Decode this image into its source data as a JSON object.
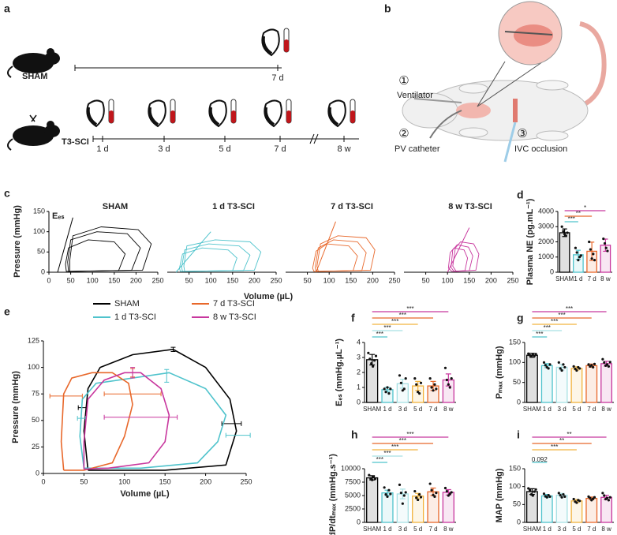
{
  "timeline": {
    "panel": "a",
    "rows": [
      {
        "label": "SHAM",
        "timepoints": [
          "7 d"
        ]
      },
      {
        "label": "T3-SCI",
        "timepoints": [
          "1 d",
          "3 d",
          "5 d",
          "7 d",
          "8 w"
        ]
      }
    ]
  },
  "diagram": {
    "panel": "b",
    "labels": [
      {
        "number": "①",
        "text": "Ventilator"
      },
      {
        "number": "②",
        "text": "PV catheter"
      },
      {
        "number": "③",
        "text": "IVC occlusion"
      }
    ]
  },
  "chart_data": [
    {
      "panel": "c",
      "type": "pv_loops",
      "ylabel": "Pressure (mmHg)",
      "xlabel": "Volume (µL)",
      "annotation": "Eₑₛ",
      "xlim": [
        0,
        250
      ],
      "ylim": [
        0,
        150
      ],
      "xticks": [
        0,
        50,
        100,
        150,
        200,
        250
      ],
      "yticks": [
        0,
        50,
        100,
        150
      ],
      "subplots": [
        {
          "title": "SHAM",
          "color": "#000000",
          "ees": {
            "x": [
              20,
              55
            ],
            "y": [
              0,
              135
            ]
          },
          "loops": [
            {
              "x": [
                48,
                215,
                235,
                205,
                120,
                55,
                48
              ],
              "y": [
                2,
                5,
                70,
                105,
                112,
                90,
                30
              ]
            },
            {
              "x": [
                45,
                190,
                210,
                180,
                110,
                50,
                43
              ],
              "y": [
                2,
                5,
                60,
                95,
                100,
                80,
                25
              ]
            },
            {
              "x": [
                40,
                160,
                175,
                150,
                90,
                45,
                38
              ],
              "y": [
                2,
                4,
                45,
                75,
                80,
                60,
                20
              ]
            }
          ]
        },
        {
          "title": "1 d T3-SCI",
          "color": "#4fc3cc",
          "ees": {
            "x": [
              20,
              100
            ],
            "y": [
              0,
              100
            ]
          },
          "loops": [
            {
              "x": [
                40,
                200,
                215,
                190,
                110,
                45,
                38
              ],
              "y": [
                2,
                5,
                50,
                75,
                80,
                65,
                15
              ]
            },
            {
              "x": [
                35,
                175,
                190,
                165,
                95,
                40,
                33
              ],
              "y": [
                2,
                4,
                42,
                65,
                70,
                55,
                12
              ]
            },
            {
              "x": [
                30,
                150,
                160,
                140,
                80,
                35,
                28
              ],
              "y": [
                2,
                4,
                35,
                55,
                60,
                45,
                10
              ]
            }
          ]
        },
        {
          "title": "7 d T3-SCI",
          "color": "#e8682b",
          "ees": {
            "x": [
              70,
              115
            ],
            "y": [
              0,
              125
            ]
          },
          "loops": [
            {
              "x": [
                75,
                195,
                205,
                185,
                120,
                80,
                72
              ],
              "y": [
                2,
                5,
                55,
                85,
                90,
                70,
                15
              ]
            },
            {
              "x": [
                70,
                175,
                185,
                165,
                110,
                75,
                68
              ],
              "y": [
                2,
                4,
                48,
                75,
                80,
                60,
                12
              ]
            },
            {
              "x": [
                65,
                155,
                165,
                145,
                95,
                70,
                62
              ],
              "y": [
                2,
                4,
                40,
                65,
                70,
                52,
                10
              ]
            }
          ]
        },
        {
          "title": "8 w T3-SCI",
          "color": "#c8379e",
          "ees": {
            "x": [
              100,
              150
            ],
            "y": [
              0,
              110
            ]
          },
          "loops": [
            {
              "x": [
                120,
                165,
                172,
                160,
                130,
                118,
                112
              ],
              "y": [
                2,
                5,
                45,
                70,
                75,
                60,
                15
              ]
            },
            {
              "x": [
                115,
                150,
                158,
                148,
                122,
                112,
                108
              ],
              "y": [
                2,
                4,
                40,
                62,
                68,
                55,
                12
              ]
            },
            {
              "x": [
                110,
                140,
                146,
                138,
                115,
                106,
                102
              ],
              "y": [
                2,
                4,
                35,
                55,
                60,
                48,
                10
              ]
            }
          ]
        }
      ]
    },
    {
      "panel": "d",
      "type": "bar",
      "ylabel": "Plasma NE (pg.mL⁻¹)",
      "categories": [
        "SHAM",
        "1 d",
        "7 d",
        "8 w"
      ],
      "colors": [
        "#000000",
        "#4fc3cc",
        "#e8682b",
        "#c8379e"
      ],
      "values": [
        2600,
        1150,
        1380,
        1780
      ],
      "errors": [
        250,
        300,
        600,
        400
      ],
      "points": [
        [
          3000,
          2700,
          2500,
          2400,
          2600
        ],
        [
          1600,
          1300,
          800,
          1000,
          1100
        ],
        [
          2000,
          1500,
          900,
          1200,
          800
        ],
        [
          2200,
          1900,
          1600,
          1400
        ]
      ],
      "ylim": [
        0,
        4000
      ],
      "yticks": [
        0,
        1000,
        2000,
        3000,
        4000
      ],
      "significance": [
        "***",
        "**",
        "*"
      ]
    },
    {
      "panel": "e",
      "type": "pv_mean",
      "xlabel": "Volume (µL)",
      "ylabel": "Pressure (mmHg)",
      "xlim": [
        0,
        250
      ],
      "ylim": [
        0,
        125
      ],
      "xticks": [
        0,
        50,
        100,
        150,
        200,
        250
      ],
      "yticks": [
        0,
        25,
        50,
        75,
        100,
        125
      ],
      "series": [
        {
          "name": "SHAM",
          "color": "#000000",
          "x": [
            55,
            150,
            225,
            238,
            230,
            200,
            160,
            110,
            70,
            55,
            50,
            55
          ],
          "y": [
            3,
            3,
            8,
            40,
            70,
            100,
            117,
            112,
            100,
            80,
            40,
            3
          ],
          "error_bars": {
            "x": [
              232,
              160,
              48
            ],
            "y": [
              47,
              117,
              62
            ],
            "xerr": [
              12,
              null,
              5
            ],
            "yerr": [
              null,
              2,
              null
            ]
          }
        },
        {
          "name": "1 d T3-SCI",
          "color": "#4fc3cc",
          "x": [
            50,
            120,
            190,
            215,
            225,
            200,
            155,
            110,
            65,
            48,
            45,
            50
          ],
          "y": [
            5,
            5,
            10,
            30,
            55,
            80,
            95,
            90,
            85,
            70,
            35,
            5
          ],
          "error_bars": {
            "x": [
              240,
              152,
              47
            ],
            "y": [
              36,
              92,
              52
            ],
            "xerr": [
              15,
              null,
              5
            ],
            "yerr": [
              null,
              6,
              null
            ]
          }
        },
        {
          "name": "7 d T3-SCI",
          "color": "#e8682b",
          "x": [
            25,
            50,
            85,
            100,
            110,
            105,
            85,
            60,
            35,
            25,
            22,
            25
          ],
          "y": [
            3,
            3,
            10,
            35,
            65,
            85,
            95,
            95,
            90,
            75,
            30,
            3
          ],
          "error_bars": {
            "x": [
              110,
              110,
              28
            ],
            "y": [
              75,
              95,
              73
            ],
            "xerr": [
              35,
              null,
              20
            ],
            "yerr": [
              null,
              4,
              null
            ]
          }
        },
        {
          "name": "8 w T3-SCI",
          "color": "#c8379e",
          "x": [
            50,
            80,
            130,
            150,
            155,
            145,
            120,
            100,
            75,
            55,
            50,
            50
          ],
          "y": [
            4,
            5,
            10,
            30,
            55,
            80,
            95,
            95,
            88,
            70,
            30,
            4
          ],
          "error_bars": {
            "x": [
              120,
              110
            ],
            "y": [
              53,
              95
            ],
            "xerr": [
              45,
              null
            ],
            "yerr": [
              null,
              5
            ]
          }
        }
      ]
    },
    {
      "panel": "f",
      "type": "bar",
      "ylabel": "Eₑₛ (mmHg.µL⁻¹)",
      "categories": [
        "SHAM",
        "1 d",
        "3 d",
        "5 d",
        "7 d",
        "8 w"
      ],
      "colors": [
        "#000000",
        "#4fc3cc",
        "#a8e0e3",
        "#f2b33d",
        "#e8682b",
        "#c8379e"
      ],
      "values": [
        2.85,
        0.85,
        1.25,
        1.1,
        1.1,
        1.5
      ],
      "errors": [
        0.35,
        0.15,
        0.3,
        0.3,
        0.3,
        0.4
      ],
      "points": [
        [
          3.3,
          2.9,
          2.6,
          2.4,
          2.8,
          3.1
        ],
        [
          0.9,
          0.7,
          1.0,
          0.6,
          0.9
        ],
        [
          1.8,
          1.3,
          0.8,
          0.9,
          1.6
        ],
        [
          1.6,
          1.2,
          0.7,
          0.6,
          1.3
        ],
        [
          1.6,
          1.0,
          0.8,
          1.2,
          0.9
        ],
        [
          2.3,
          1.5,
          1.2,
          1.0,
          1.6
        ]
      ],
      "ylim": [
        0,
        4
      ],
      "yticks": [
        0,
        1,
        2,
        3,
        4
      ],
      "significance": [
        "***",
        "***",
        "***",
        "***",
        "***"
      ]
    },
    {
      "panel": "g",
      "type": "bar",
      "ylabel": "Pₘₐₓ (mmHg)",
      "categories": [
        "SHAM",
        "1 d",
        "3 d",
        "5 d",
        "7 d",
        "8 w"
      ],
      "colors": [
        "#000000",
        "#4fc3cc",
        "#a8e0e3",
        "#f2b33d",
        "#e8682b",
        "#c8379e"
      ],
      "values": [
        118,
        92,
        88,
        85,
        92,
        97
      ],
      "errors": [
        5,
        5,
        7,
        4,
        4,
        6
      ],
      "points": [
        [
          122,
          118,
          115,
          120,
          116,
          121
        ],
        [
          100,
          93,
          88,
          85,
          95
        ],
        [
          100,
          85,
          80,
          95,
          88
        ],
        [
          90,
          84,
          80,
          88,
          85
        ],
        [
          95,
          90,
          93,
          88,
          96
        ],
        [
          108,
          100,
          92,
          95,
          90,
          101
        ]
      ],
      "ylim": [
        0,
        150
      ],
      "yticks": [
        0,
        50,
        100,
        150
      ],
      "significance": [
        "***",
        "***",
        "***",
        "***",
        "***"
      ]
    },
    {
      "panel": "h",
      "type": "bar",
      "ylabel": "dP/dtₘₐₓ (mmHg.s⁻¹)",
      "categories": [
        "SHAM",
        "1 d",
        "3 d",
        "5 d",
        "7 d",
        "8 w"
      ],
      "colors": [
        "#000000",
        "#4fc3cc",
        "#a8e0e3",
        "#f2b33d",
        "#e8682b",
        "#c8379e"
      ],
      "values": [
        8300,
        5500,
        5300,
        4900,
        5700,
        5600
      ],
      "errors": [
        400,
        500,
        900,
        500,
        700,
        500
      ],
      "points": [
        [
          8800,
          8200,
          7900,
          8500,
          8100
        ],
        [
          6500,
          5200,
          4800,
          6000,
          5300
        ],
        [
          7000,
          5500,
          3500,
          5000,
          5600
        ],
        [
          5800,
          4600,
          4200,
          5200,
          4700
        ],
        [
          7200,
          6000,
          5100,
          4800,
          5500
        ],
        [
          6400,
          5800,
          5000,
          5300,
          5600
        ]
      ],
      "ylim": [
        0,
        10000
      ],
      "yticks": [
        0,
        2500,
        5000,
        7500,
        10000
      ],
      "significance": [
        "***",
        "***",
        "***",
        "***",
        "***"
      ]
    },
    {
      "panel": "i",
      "type": "bar",
      "ylabel": "MAP (mmHg)",
      "categories": [
        "SHAM",
        "1 d",
        "3 d",
        "5 d",
        "7 d",
        "8 w"
      ],
      "colors": [
        "#000000",
        "#4fc3cc",
        "#a8e0e3",
        "#f2b33d",
        "#e8682b",
        "#c8379e"
      ],
      "values": [
        86,
        74,
        76,
        60,
        67,
        70
      ],
      "errors": [
        8,
        4,
        5,
        4,
        4,
        6
      ],
      "points": [
        [
          95,
          90,
          78,
          75,
          86,
          92
        ],
        [
          80,
          73,
          70,
          76,
          72
        ],
        [
          82,
          76,
          70,
          78,
          72
        ],
        [
          65,
          58,
          55,
          62,
          60
        ],
        [
          72,
          68,
          62,
          66,
          70
        ],
        [
          82,
          75,
          65,
          68,
          62,
          70
        ]
      ],
      "ylim": [
        0,
        150
      ],
      "yticks": [
        0,
        50,
        100,
        150
      ],
      "significance": [
        "0.092",
        null,
        "***",
        "**",
        "**"
      ]
    }
  ]
}
